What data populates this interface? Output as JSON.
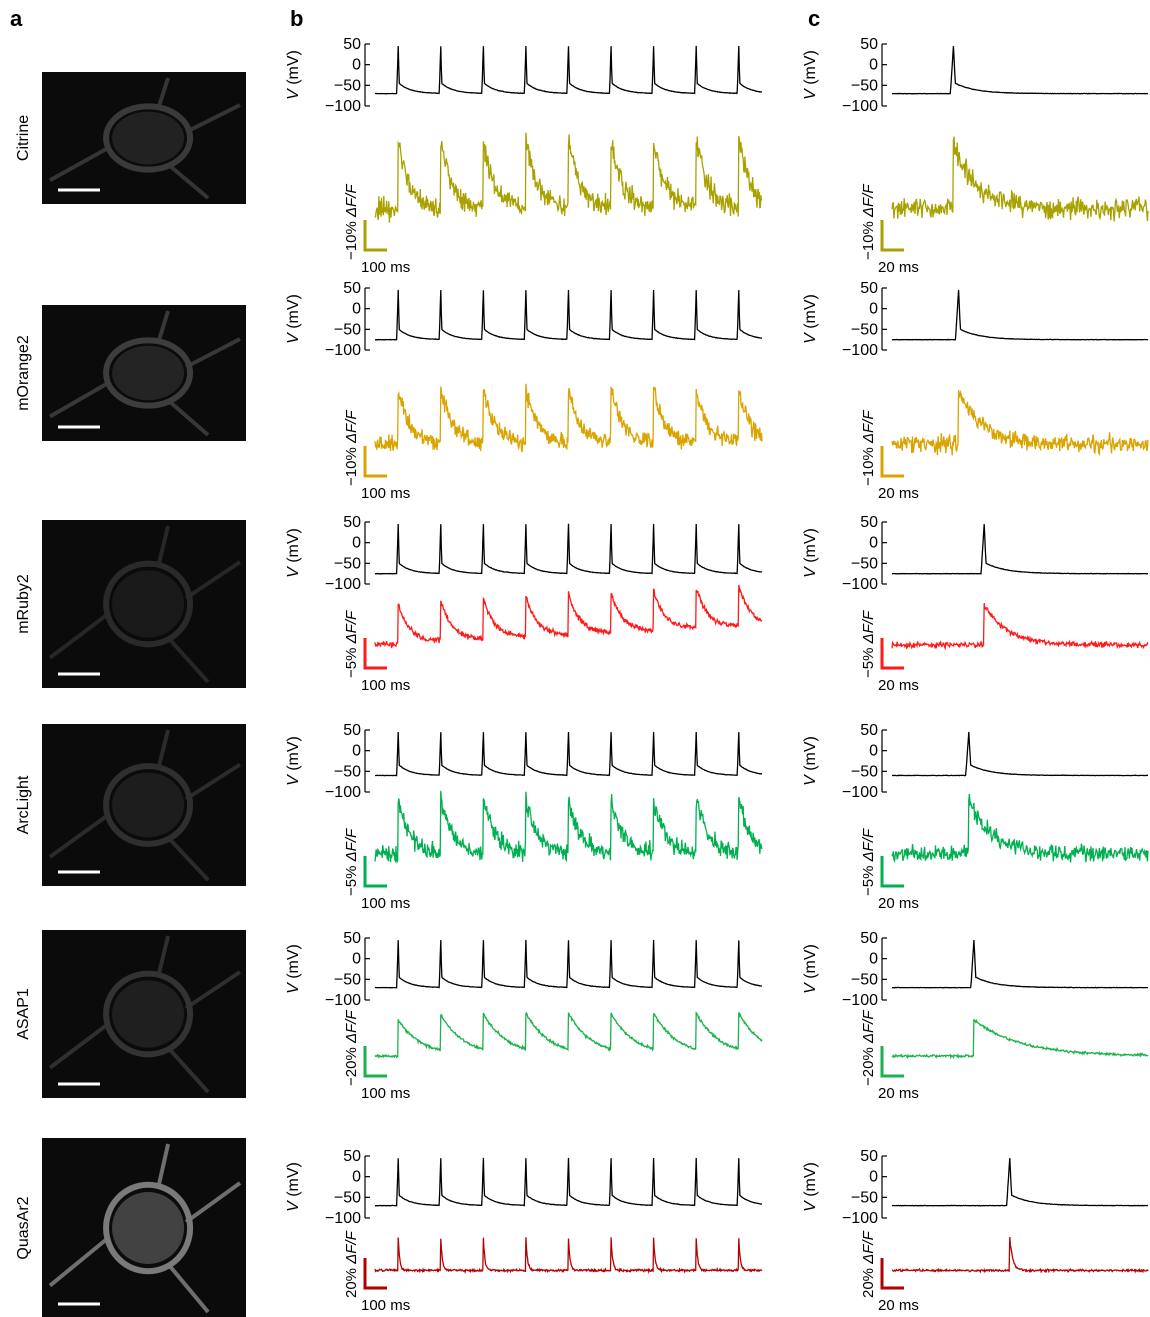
{
  "panels": {
    "a": "a",
    "b": "b",
    "c": "c"
  },
  "voltage_axis": {
    "label_v": "V",
    "label_unit": " (mV)",
    "ticks": [
      "50",
      "0",
      "−50",
      "−100"
    ]
  },
  "fluor_label": "ΔF/F",
  "rows": [
    {
      "name": "Citrine",
      "color": "#a8a100",
      "df_scale": "−10% ",
      "time_b": "100 ms",
      "time_c": "20 ms",
      "image_tone": "#3a3a3a",
      "vrest": -70,
      "fluor": "noisy"
    },
    {
      "name": "mOrange2",
      "color": "#d9a300",
      "df_scale": "−10% ",
      "time_b": "100 ms",
      "time_c": "20 ms",
      "image_tone": "#3d3d3d",
      "vrest": -75,
      "fluor": "noisy"
    },
    {
      "name": "mRuby2",
      "color": "#ff1a1a",
      "df_scale": "−5% ",
      "time_b": "100 ms",
      "time_c": "20 ms",
      "image_tone": "#2a2a2a",
      "vrest": -75,
      "fluor": "drift"
    },
    {
      "name": "ArcLight",
      "color": "#00b050",
      "df_scale": "−5% ",
      "time_b": "100 ms",
      "time_c": "20 ms",
      "image_tone": "#2f2f2f",
      "vrest": -60,
      "fluor": "noisy"
    },
    {
      "name": "ASAP1",
      "color": "#1ab24a",
      "df_scale": "−20% ",
      "time_b": "100 ms",
      "time_c": "20 ms",
      "image_tone": "#333333",
      "vrest": -70,
      "fluor": "decay"
    },
    {
      "name": "QuasAr2",
      "color": "#b30000",
      "df_scale": "20% ",
      "time_b": "100 ms",
      "time_c": "20 ms",
      "image_tone": "#7a7a7a",
      "vrest": -70,
      "fluor": "sharp"
    }
  ]
}
